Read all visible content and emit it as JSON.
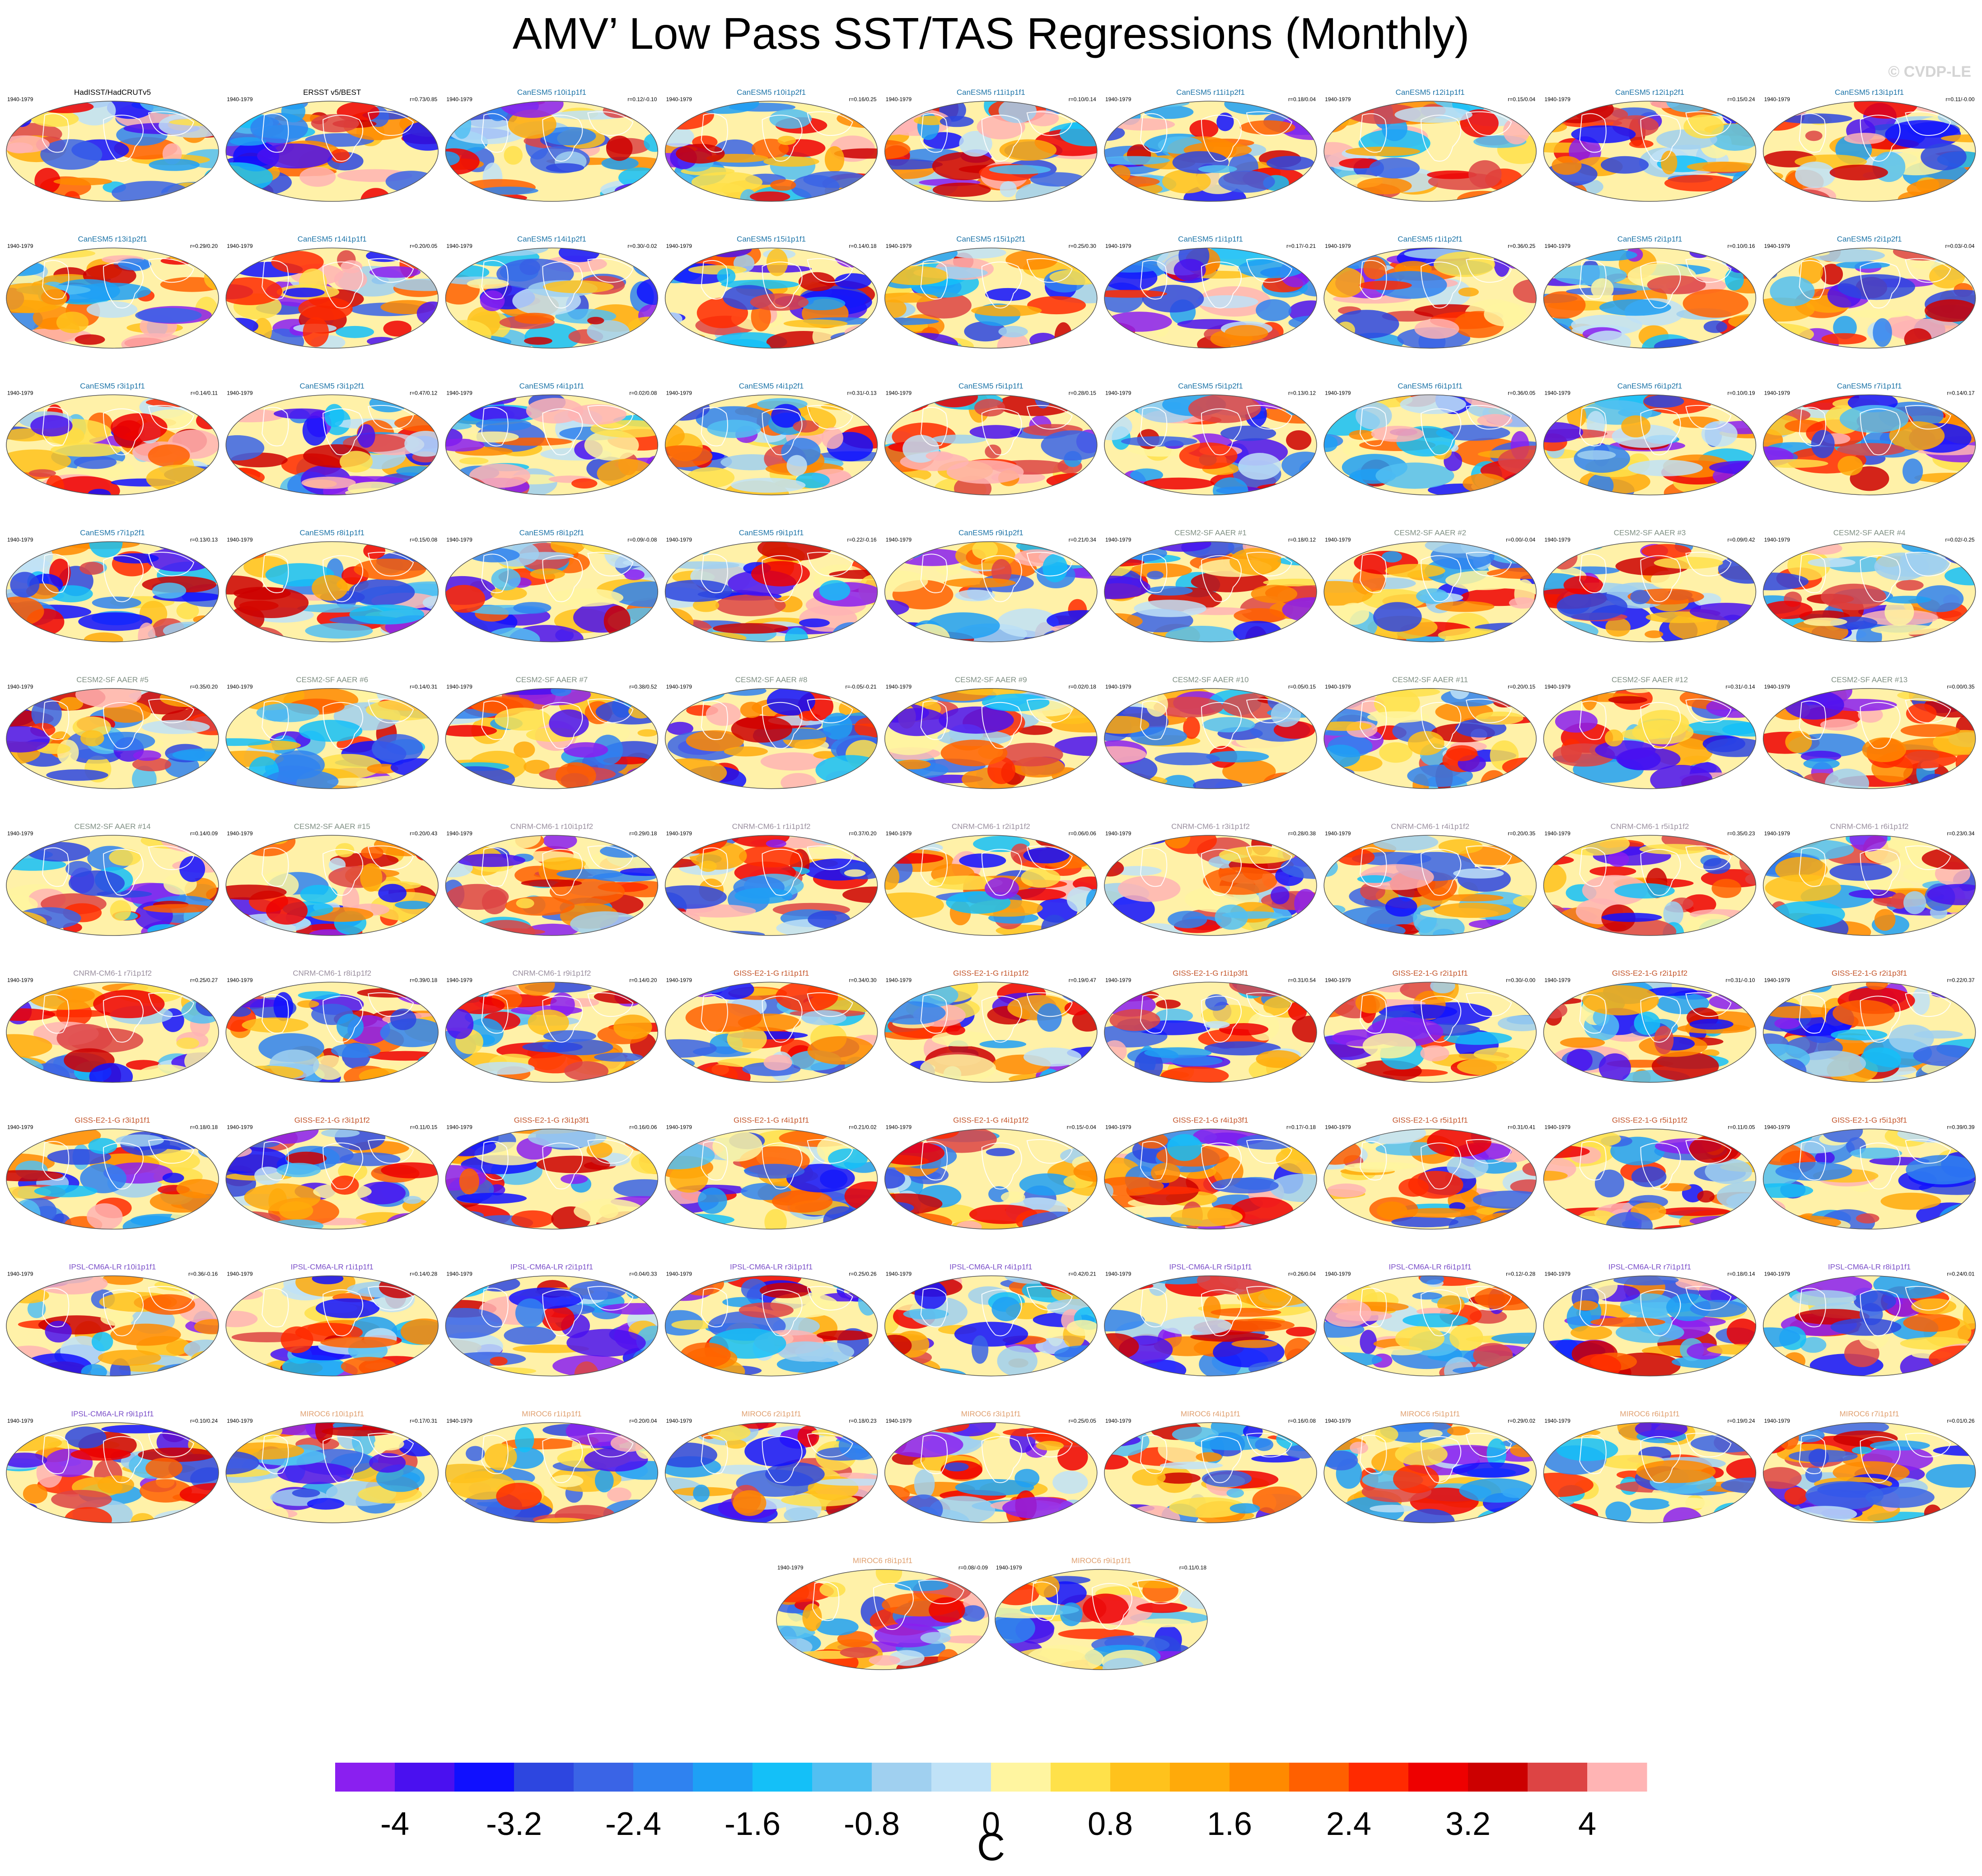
{
  "title": "AMV’ Low Pass SST/TAS Regressions (Monthly)",
  "copyright": "© CVDP-LE",
  "colorbar": {
    "units": "C",
    "tick_labels": [
      "-4",
      "-3.2",
      "-2.4",
      "-1.6",
      "-0.8",
      "0",
      "0.8",
      "1.6",
      "2.4",
      "3.2",
      "4"
    ],
    "colors": [
      "#8a1ff0",
      "#4a10f0",
      "#1010ff",
      "#2d46e0",
      "#3a64e6",
      "#2f82f0",
      "#1ea0f5",
      "#14c0f8",
      "#52bff2",
      "#a0d0f0",
      "#c0e2f7",
      "#fff5a0",
      "#ffe14a",
      "#ffc21c",
      "#ffaa0a",
      "#ff8a00",
      "#ff6000",
      "#ff2a00",
      "#ee0000",
      "#cc0000",
      "#dd4444",
      "#ffb4b4"
    ]
  },
  "chart_data": {
    "type": "heatmap",
    "description_period": "1940-1979",
    "panels": [
      {
        "title": "HadISST/HadCRUTv5",
        "period": "1940-1979",
        "corr": "",
        "group": "obs"
      },
      {
        "title": "ERSST v5/BEST",
        "period": "1940-1979",
        "corr": "r=0.73/0.85",
        "group": "obs"
      },
      {
        "title": "CanESM5 r10i1p1f1",
        "period": "1940-1979",
        "corr": "r=0.12/-0.10",
        "group": "CanESM5"
      },
      {
        "title": "CanESM5 r10i1p2f1",
        "period": "1940-1979",
        "corr": "r=0.16/0.25",
        "group": "CanESM5"
      },
      {
        "title": "CanESM5 r11i1p1f1",
        "period": "1940-1979",
        "corr": "r=0.10/0.14",
        "group": "CanESM5"
      },
      {
        "title": "CanESM5 r11i1p2f1",
        "period": "1940-1979",
        "corr": "r=0.18/0.04",
        "group": "CanESM5"
      },
      {
        "title": "CanESM5 r12i1p1f1",
        "period": "1940-1979",
        "corr": "r=0.15/0.04",
        "group": "CanESM5"
      },
      {
        "title": "CanESM5 r12i1p2f1",
        "period": "1940-1979",
        "corr": "r=0.15/0.24",
        "group": "CanESM5"
      },
      {
        "title": "CanESM5 r13i1p1f1",
        "period": "1940-1979",
        "corr": "r=0.11/-0.00",
        "group": "CanESM5"
      },
      {
        "title": "CanESM5 r13i1p2f1",
        "period": "1940-1979",
        "corr": "r=0.29/0.20",
        "group": "CanESM5"
      },
      {
        "title": "CanESM5 r14i1p1f1",
        "period": "1940-1979",
        "corr": "r=0.20/0.05",
        "group": "CanESM5"
      },
      {
        "title": "CanESM5 r14i1p2f1",
        "period": "1940-1979",
        "corr": "r=0.30/-0.02",
        "group": "CanESM5"
      },
      {
        "title": "CanESM5 r15i1p1f1",
        "period": "1940-1979",
        "corr": "r=0.14/0.18",
        "group": "CanESM5"
      },
      {
        "title": "CanESM5 r15i1p2f1",
        "period": "1940-1979",
        "corr": "r=0.25/0.30",
        "group": "CanESM5"
      },
      {
        "title": "CanESM5 r1i1p1f1",
        "period": "1940-1979",
        "corr": "r=0.17/-0.21",
        "group": "CanESM5"
      },
      {
        "title": "CanESM5 r1i1p2f1",
        "period": "1940-1979",
        "corr": "r=0.36/0.25",
        "group": "CanESM5"
      },
      {
        "title": "CanESM5 r2i1p1f1",
        "period": "1940-1979",
        "corr": "r=0.10/0.16",
        "group": "CanESM5"
      },
      {
        "title": "CanESM5 r2i1p2f1",
        "period": "1940-1979",
        "corr": "r=0.03/-0.04",
        "group": "CanESM5"
      },
      {
        "title": "CanESM5 r3i1p1f1",
        "period": "1940-1979",
        "corr": "r=0.14/0.11",
        "group": "CanESM5"
      },
      {
        "title": "CanESM5 r3i1p2f1",
        "period": "1940-1979",
        "corr": "r=0.47/0.12",
        "group": "CanESM5"
      },
      {
        "title": "CanESM5 r4i1p1f1",
        "period": "1940-1979",
        "corr": "r=0.02/0.08",
        "group": "CanESM5"
      },
      {
        "title": "CanESM5 r4i1p2f1",
        "period": "1940-1979",
        "corr": "r=0.31/-0.13",
        "group": "CanESM5"
      },
      {
        "title": "CanESM5 r5i1p1f1",
        "period": "1940-1979",
        "corr": "r=0.28/0.15",
        "group": "CanESM5"
      },
      {
        "title": "CanESM5 r5i1p2f1",
        "period": "1940-1979",
        "corr": "r=0.13/0.12",
        "group": "CanESM5"
      },
      {
        "title": "CanESM5 r6i1p1f1",
        "period": "1940-1979",
        "corr": "r=0.36/0.05",
        "group": "CanESM5"
      },
      {
        "title": "CanESM5 r6i1p2f1",
        "period": "1940-1979",
        "corr": "r=0.10/0.19",
        "group": "CanESM5"
      },
      {
        "title": "CanESM5 r7i1p1f1",
        "period": "1940-1979",
        "corr": "r=0.14/0.17",
        "group": "CanESM5"
      },
      {
        "title": "CanESM5 r7i1p2f1",
        "period": "1940-1979",
        "corr": "r=0.13/0.13",
        "group": "CanESM5"
      },
      {
        "title": "CanESM5 r8i1p1f1",
        "period": "1940-1979",
        "corr": "r=0.15/0.08",
        "group": "CanESM5"
      },
      {
        "title": "CanESM5 r8i1p2f1",
        "period": "1940-1979",
        "corr": "r=0.09/-0.08",
        "group": "CanESM5"
      },
      {
        "title": "CanESM5 r9i1p1f1",
        "period": "1940-1979",
        "corr": "r=0.22/-0.16",
        "group": "CanESM5"
      },
      {
        "title": "CanESM5 r9i1p2f1",
        "period": "1940-1979",
        "corr": "r=0.21/0.34",
        "group": "CanESM5"
      },
      {
        "title": "CESM2-SF AAER #1",
        "period": "1940-1979",
        "corr": "r=0.18/0.12",
        "group": "CESM2"
      },
      {
        "title": "CESM2-SF AAER #2",
        "period": "1940-1979",
        "corr": "r=0.00/-0.04",
        "group": "CESM2"
      },
      {
        "title": "CESM2-SF AAER #3",
        "period": "1940-1979",
        "corr": "r=0.09/0.42",
        "group": "CESM2"
      },
      {
        "title": "CESM2-SF AAER #4",
        "period": "1940-1979",
        "corr": "r=0.02/-0.25",
        "group": "CESM2"
      },
      {
        "title": "CESM2-SF AAER #5",
        "period": "1940-1979",
        "corr": "r=0.35/0.20",
        "group": "CESM2"
      },
      {
        "title": "CESM2-SF AAER #6",
        "period": "1940-1979",
        "corr": "r=0.14/0.31",
        "group": "CESM2"
      },
      {
        "title": "CESM2-SF AAER #7",
        "period": "1940-1979",
        "corr": "r=0.38/0.52",
        "group": "CESM2"
      },
      {
        "title": "CESM2-SF AAER #8",
        "period": "1940-1979",
        "corr": "r=-0.05/-0.21",
        "group": "CESM2"
      },
      {
        "title": "CESM2-SF AAER #9",
        "period": "1940-1979",
        "corr": "r=0.02/0.18",
        "group": "CESM2"
      },
      {
        "title": "CESM2-SF AAER #10",
        "period": "1940-1979",
        "corr": "r=0.05/0.15",
        "group": "CESM2"
      },
      {
        "title": "CESM2-SF AAER #11",
        "period": "1940-1979",
        "corr": "r=0.20/0.15",
        "group": "CESM2"
      },
      {
        "title": "CESM2-SF AAER #12",
        "period": "1940-1979",
        "corr": "r=0.31/-0.14",
        "group": "CESM2"
      },
      {
        "title": "CESM2-SF AAER #13",
        "period": "1940-1979",
        "corr": "r=0.00/0.35",
        "group": "CESM2"
      },
      {
        "title": "CESM2-SF AAER #14",
        "period": "1940-1979",
        "corr": "r=0.14/0.09",
        "group": "CESM2"
      },
      {
        "title": "CESM2-SF AAER #15",
        "period": "1940-1979",
        "corr": "r=0.20/0.43",
        "group": "CESM2"
      },
      {
        "title": "CNRM-CM6-1 r10i1p1f2",
        "period": "1940-1979",
        "corr": "r=0.29/0.18",
        "group": "CNRM"
      },
      {
        "title": "CNRM-CM6-1 r1i1p1f2",
        "period": "1940-1979",
        "corr": "r=0.37/0.20",
        "group": "CNRM"
      },
      {
        "title": "CNRM-CM6-1 r2i1p1f2",
        "period": "1940-1979",
        "corr": "r=0.06/0.06",
        "group": "CNRM"
      },
      {
        "title": "CNRM-CM6-1 r3i1p1f2",
        "period": "1940-1979",
        "corr": "r=0.28/0.38",
        "group": "CNRM"
      },
      {
        "title": "CNRM-CM6-1 r4i1p1f2",
        "period": "1940-1979",
        "corr": "r=0.20/0.35",
        "group": "CNRM"
      },
      {
        "title": "CNRM-CM6-1 r5i1p1f2",
        "period": "1940-1979",
        "corr": "r=0.35/0.23",
        "group": "CNRM"
      },
      {
        "title": "CNRM-CM6-1 r6i1p1f2",
        "period": "1940-1979",
        "corr": "r=0.23/0.34",
        "group": "CNRM"
      },
      {
        "title": "CNRM-CM6-1 r7i1p1f2",
        "period": "1940-1979",
        "corr": "r=0.25/0.27",
        "group": "CNRM"
      },
      {
        "title": "CNRM-CM6-1 r8i1p1f2",
        "period": "1940-1979",
        "corr": "r=0.39/0.18",
        "group": "CNRM"
      },
      {
        "title": "CNRM-CM6-1 r9i1p1f2",
        "period": "1940-1979",
        "corr": "r=0.14/0.20",
        "group": "CNRM"
      },
      {
        "title": "GISS-E2-1-G r1i1p1f1",
        "period": "1940-1979",
        "corr": "r=0.34/0.30",
        "group": "GISS"
      },
      {
        "title": "GISS-E2-1-G r1i1p1f2",
        "period": "1940-1979",
        "corr": "r=0.19/0.47",
        "group": "GISS"
      },
      {
        "title": "GISS-E2-1-G r1i1p3f1",
        "period": "1940-1979",
        "corr": "r=0.31/0.54",
        "group": "GISS"
      },
      {
        "title": "GISS-E2-1-G r2i1p1f1",
        "period": "1940-1979",
        "corr": "r=0.30/-0.00",
        "group": "GISS"
      },
      {
        "title": "GISS-E2-1-G r2i1p1f2",
        "period": "1940-1979",
        "corr": "r=0.31/-0.10",
        "group": "GISS"
      },
      {
        "title": "GISS-E2-1-G r2i1p3f1",
        "period": "1940-1979",
        "corr": "r=0.22/0.37",
        "group": "GISS"
      },
      {
        "title": "GISS-E2-1-G r3i1p1f1",
        "period": "1940-1979",
        "corr": "r=0.18/0.18",
        "group": "GISS"
      },
      {
        "title": "GISS-E2-1-G r3i1p1f2",
        "period": "1940-1979",
        "corr": "r=0.11/0.15",
        "group": "GISS"
      },
      {
        "title": "GISS-E2-1-G r3i1p3f1",
        "period": "1940-1979",
        "corr": "r=0.16/0.06",
        "group": "GISS"
      },
      {
        "title": "GISS-E2-1-G r4i1p1f1",
        "period": "1940-1979",
        "corr": "r=0.21/0.02",
        "group": "GISS"
      },
      {
        "title": "GISS-E2-1-G r4i1p1f2",
        "period": "1940-1979",
        "corr": "r=0.15/-0.04",
        "group": "GISS"
      },
      {
        "title": "GISS-E2-1-G r4i1p3f1",
        "period": "1940-1979",
        "corr": "r=0.17/-0.18",
        "group": "GISS"
      },
      {
        "title": "GISS-E2-1-G r5i1p1f1",
        "period": "1940-1979",
        "corr": "r=0.31/0.41",
        "group": "GISS"
      },
      {
        "title": "GISS-E2-1-G r5i1p1f2",
        "period": "1940-1979",
        "corr": "r=0.11/0.05",
        "group": "GISS"
      },
      {
        "title": "GISS-E2-1-G r5i1p3f1",
        "period": "1940-1979",
        "corr": "r=0.39/0.39",
        "group": "GISS"
      },
      {
        "title": "IPSL-CM6A-LR r10i1p1f1",
        "period": "1940-1979",
        "corr": "r=0.36/-0.16",
        "group": "IPSL"
      },
      {
        "title": "IPSL-CM6A-LR r1i1p1f1",
        "period": "1940-1979",
        "corr": "r=0.14/0.28",
        "group": "IPSL"
      },
      {
        "title": "IPSL-CM6A-LR r2i1p1f1",
        "period": "1940-1979",
        "corr": "r=0.04/0.33",
        "group": "IPSL"
      },
      {
        "title": "IPSL-CM6A-LR r3i1p1f1",
        "period": "1940-1979",
        "corr": "r=0.25/0.26",
        "group": "IPSL"
      },
      {
        "title": "IPSL-CM6A-LR r4i1p1f1",
        "period": "1940-1979",
        "corr": "r=0.42/0.21",
        "group": "IPSL"
      },
      {
        "title": "IPSL-CM6A-LR r5i1p1f1",
        "period": "1940-1979",
        "corr": "r=0.26/0.04",
        "group": "IPSL"
      },
      {
        "title": "IPSL-CM6A-LR r6i1p1f1",
        "period": "1940-1979",
        "corr": "r=0.12/-0.28",
        "group": "IPSL"
      },
      {
        "title": "IPSL-CM6A-LR r7i1p1f1",
        "period": "1940-1979",
        "corr": "r=0.18/0.14",
        "group": "IPSL"
      },
      {
        "title": "IPSL-CM6A-LR r8i1p1f1",
        "period": "1940-1979",
        "corr": "r=0.24/0.01",
        "group": "IPSL"
      },
      {
        "title": "IPSL-CM6A-LR r9i1p1f1",
        "period": "1940-1979",
        "corr": "r=0.10/0.24",
        "group": "IPSL"
      },
      {
        "title": "MIROC6 r10i1p1f1",
        "period": "1940-1979",
        "corr": "r=0.17/0.31",
        "group": "MIROC6"
      },
      {
        "title": "MIROC6 r1i1p1f1",
        "period": "1940-1979",
        "corr": "r=0.20/0.04",
        "group": "MIROC6"
      },
      {
        "title": "MIROC6 r2i1p1f1",
        "period": "1940-1979",
        "corr": "r=0.18/0.23",
        "group": "MIROC6"
      },
      {
        "title": "MIROC6 r3i1p1f1",
        "period": "1940-1979",
        "corr": "r=0.25/0.05",
        "group": "MIROC6"
      },
      {
        "title": "MIROC6 r4i1p1f1",
        "period": "1940-1979",
        "corr": "r=0.16/0.08",
        "group": "MIROC6"
      },
      {
        "title": "MIROC6 r5i1p1f1",
        "period": "1940-1979",
        "corr": "r=0.29/0.02",
        "group": "MIROC6"
      },
      {
        "title": "MIROC6 r6i1p1f1",
        "period": "1940-1979",
        "corr": "r=0.19/0.24",
        "group": "MIROC6"
      },
      {
        "title": "MIROC6 r7i1p1f1",
        "period": "1940-1979",
        "corr": "r=0.01/0.26",
        "group": "MIROC6"
      },
      {
        "title": "MIROC6 r8i1p1f1",
        "period": "1940-1979",
        "corr": "r=0.08/-0.09",
        "group": "MIROC6"
      },
      {
        "title": "MIROC6 r9i1p1f1",
        "period": "1940-1979",
        "corr": "r=0.11/0.18",
        "group": "MIROC6"
      }
    ],
    "group_colors": {
      "obs": "#000000",
      "CanESM5": "#1d74a8",
      "CESM2": "#7f8f83",
      "CNRM": "#9a8f9f",
      "GISS": "#c4552b",
      "IPSL": "#7b4fc9",
      "MIROC6": "#e0a070"
    },
    "colorbar_range": [
      -4.4,
      4.4
    ],
    "colorbar_units": "C"
  }
}
